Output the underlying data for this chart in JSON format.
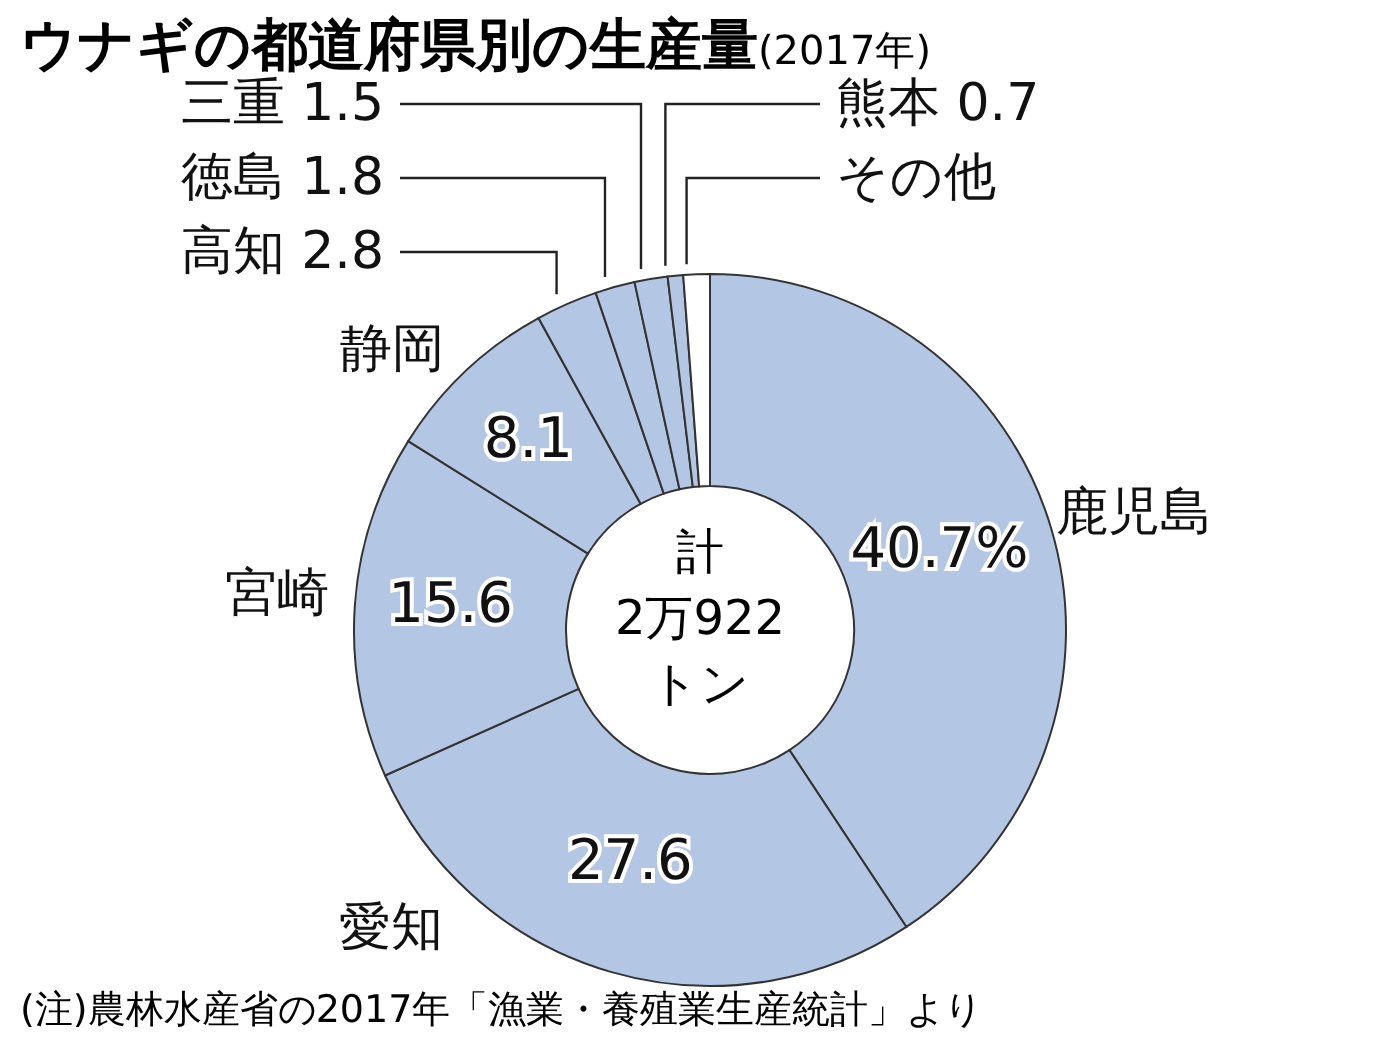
{
  "chart_data": {
    "type": "donut",
    "title": "ウナギの都道府県別の生産量",
    "subtitle": "(2017年)",
    "categories": [
      "鹿児島",
      "愛知",
      "宮崎",
      "静岡",
      "高知",
      "徳島",
      "三重",
      "熊本",
      "その他"
    ],
    "values": [
      40.7,
      27.6,
      15.6,
      8.1,
      2.8,
      1.8,
      1.5,
      0.7,
      1.2
    ],
    "colors": [
      "#b3c6e4",
      "#b3c6e4",
      "#b3c6e4",
      "#b3c6e4",
      "#b3c6e4",
      "#b3c6e4",
      "#b3c6e4",
      "#b3c6e4",
      "#ffffff"
    ],
    "value_labels": [
      "40.7%",
      "27.6",
      "15.6",
      "8.1",
      "2.8",
      "1.8",
      "1.5",
      "0.7",
      null
    ],
    "annotations": [
      "計\n2万922\nトン",
      "(注)農林水産省の2017年「漁業・養殖業生産統計」より"
    ]
  }
}
